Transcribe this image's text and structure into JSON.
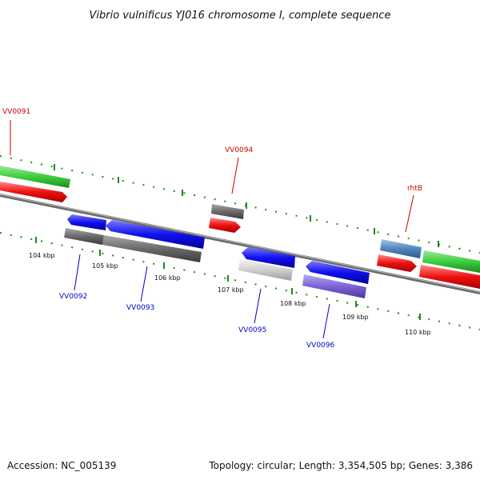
{
  "title": "Vibrio vulnificus YJ016 chromosome I, complete sequence",
  "footer": {
    "accession": "Accession: NC_005139",
    "topology": "Topology: circular; Length: 3,354,505 bp; Genes: 3,386"
  },
  "ticks": [
    "104 kbp",
    "105 kbp",
    "106 kbp",
    "107 kbp",
    "108 kbp",
    "109 kbp",
    "110 kbp"
  ],
  "genes": {
    "forward": [
      "VV0091",
      "VV0094",
      "rhtB"
    ],
    "reverse": [
      "VV0092",
      "VV0093",
      "VV0095",
      "VV0096"
    ]
  },
  "colors": {
    "forward_label": "#cc0000",
    "reverse_label": "#0000cc",
    "dots": "#1a8c1a",
    "backbone": "#808080"
  }
}
